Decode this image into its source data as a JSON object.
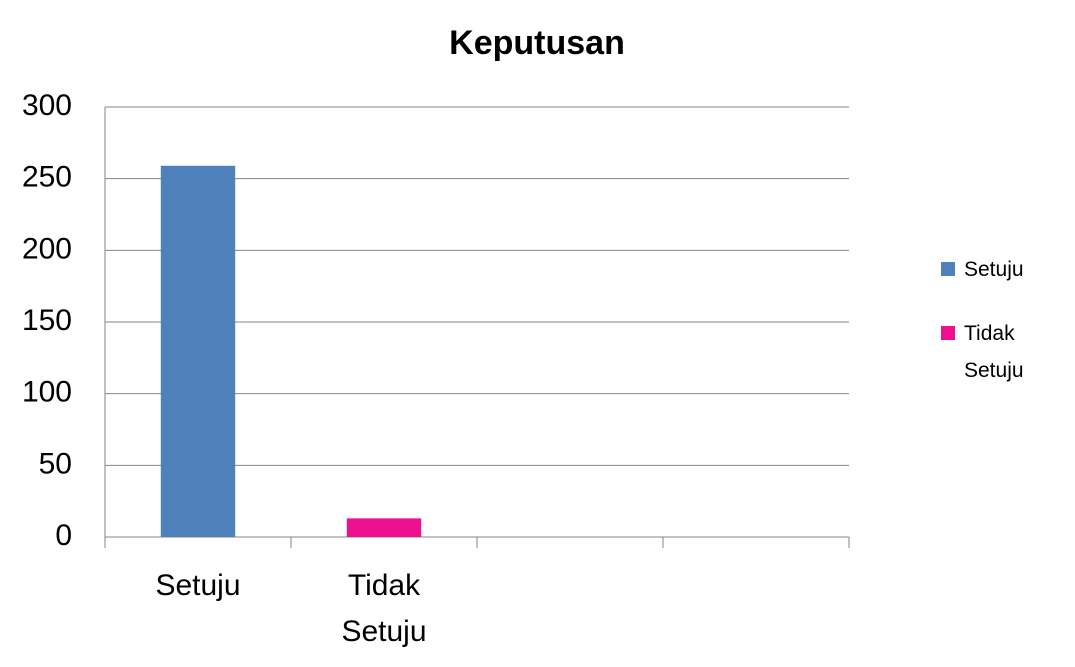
{
  "chart_data": {
    "type": "bar",
    "title": "Keputusan",
    "categories": [
      "Setuju",
      "Tidak Setuju",
      null,
      null
    ],
    "series": [
      {
        "name": "Setuju",
        "color": "#4f81bd",
        "values": [
          259,
          null,
          null,
          null
        ]
      },
      {
        "name": "Tidak Setuju",
        "color": "#ee0f8e",
        "values": [
          null,
          13,
          null,
          null
        ]
      }
    ],
    "ylim": [
      0,
      300
    ],
    "yticks": [
      0,
      50,
      100,
      150,
      200,
      250,
      300
    ],
    "grid": true,
    "legend": "right"
  }
}
